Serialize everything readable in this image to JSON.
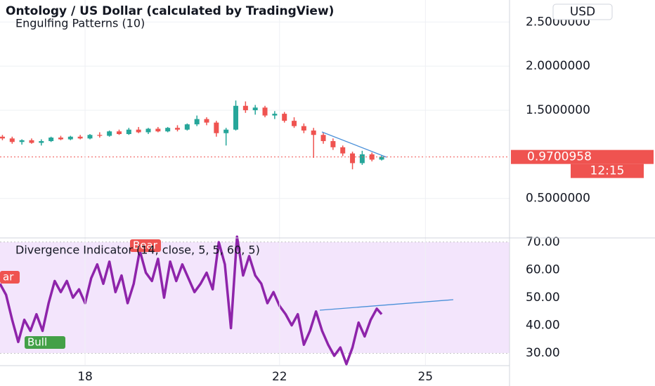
{
  "chart_data": [
    {
      "type": "candlestick",
      "title": "Ontology / US Dollar (calculated by TradingView)",
      "subtitle": "Engulfing Patterns (10)",
      "currency": "USD",
      "x": [
        16.3,
        16.5,
        16.7,
        16.9,
        17.1,
        17.3,
        17.5,
        17.7,
        17.9,
        18.1,
        18.3,
        18.5,
        18.7,
        18.9,
        19.1,
        19.3,
        19.5,
        19.7,
        19.9,
        20.1,
        20.3,
        20.5,
        20.7,
        20.9,
        21.1,
        21.3,
        21.5,
        21.7,
        21.9,
        22.1,
        22.3,
        22.5,
        22.7,
        22.9,
        23.1,
        23.3,
        23.5,
        23.7,
        23.9,
        24.1
      ],
      "open": [
        1.2,
        1.18,
        1.14,
        1.16,
        1.13,
        1.15,
        1.19,
        1.17,
        1.2,
        1.18,
        1.22,
        1.21,
        1.26,
        1.23,
        1.28,
        1.25,
        1.29,
        1.26,
        1.3,
        1.28,
        1.34,
        1.4,
        1.36,
        1.24,
        1.28,
        1.55,
        1.5,
        1.53,
        1.44,
        1.46,
        1.38,
        1.32,
        1.27,
        1.22,
        1.15,
        1.08,
        1.01,
        0.9,
        1.0,
        0.94
      ],
      "high": [
        1.22,
        1.2,
        1.17,
        1.18,
        1.17,
        1.2,
        1.21,
        1.21,
        1.22,
        1.23,
        1.25,
        1.27,
        1.28,
        1.3,
        1.31,
        1.3,
        1.31,
        1.31,
        1.33,
        1.35,
        1.44,
        1.42,
        1.38,
        1.3,
        1.61,
        1.6,
        1.56,
        1.55,
        1.49,
        1.48,
        1.42,
        1.35,
        1.3,
        1.25,
        1.18,
        1.1,
        1.03,
        1.04,
        1.02,
        0.99
      ],
      "low": [
        1.16,
        1.12,
        1.11,
        1.12,
        1.1,
        1.14,
        1.16,
        1.16,
        1.17,
        1.17,
        1.19,
        1.2,
        1.22,
        1.22,
        1.24,
        1.23,
        1.25,
        1.25,
        1.26,
        1.27,
        1.32,
        1.33,
        1.2,
        1.1,
        1.27,
        1.47,
        1.45,
        1.42,
        1.4,
        1.36,
        1.3,
        1.24,
        0.96,
        1.12,
        1.05,
        0.98,
        0.83,
        0.88,
        0.92,
        0.93
      ],
      "close": [
        1.18,
        1.14,
        1.16,
        1.13,
        1.15,
        1.19,
        1.17,
        1.2,
        1.18,
        1.22,
        1.21,
        1.26,
        1.23,
        1.28,
        1.25,
        1.29,
        1.26,
        1.3,
        1.28,
        1.34,
        1.4,
        1.36,
        1.24,
        1.28,
        1.55,
        1.5,
        1.53,
        1.44,
        1.46,
        1.38,
        1.32,
        1.27,
        1.22,
        1.15,
        1.08,
        1.01,
        0.9,
        1.0,
        0.94,
        0.97
      ],
      "up_color": "#26a69a",
      "down_color": "#ef5350",
      "last_price": 0.9700958,
      "countdown": "12:15",
      "xlim": [
        16.25,
        26.73
      ],
      "ylim": [
        0.06,
        2.75
      ],
      "yticks": [
        {
          "value": 0.5,
          "label": "0.5000000"
        },
        {
          "value": 1.5,
          "label": "1.5000000"
        },
        {
          "value": 2,
          "label": "2.0000000"
        },
        {
          "value": 2.5,
          "label": "2.5000000"
        }
      ],
      "grid": true
    },
    {
      "type": "line",
      "title": "Divergence Indicator (14, close, 5, 5, 60, 5)",
      "color": "#8e24aa",
      "band_color": "#f3e5fc",
      "x": [
        16.25,
        16.375,
        16.5,
        16.625,
        16.75,
        16.875,
        17,
        17.125,
        17.25,
        17.375,
        17.5,
        17.625,
        17.75,
        17.875,
        18,
        18.125,
        18.25,
        18.375,
        18.5,
        18.625,
        18.75,
        18.875,
        19,
        19.125,
        19.25,
        19.375,
        19.5,
        19.625,
        19.75,
        19.875,
        20,
        20.125,
        20.25,
        20.375,
        20.5,
        20.625,
        20.75,
        20.875,
        21,
        21.125,
        21.25,
        21.375,
        21.5,
        21.625,
        21.75,
        21.875,
        22,
        22.125,
        22.25,
        22.375,
        22.5,
        22.625,
        22.75,
        22.875,
        23,
        23.125,
        23.25,
        23.375,
        23.5,
        23.625,
        23.75,
        23.875,
        24,
        24.1
      ],
      "values": [
        55,
        51,
        42,
        34,
        42,
        38,
        44,
        38,
        48,
        56,
        52,
        56,
        50,
        53,
        48,
        57,
        62,
        55,
        63,
        52,
        58,
        48,
        55,
        67,
        59,
        56,
        64,
        50,
        63,
        56,
        62,
        57,
        52,
        55,
        59,
        53,
        70,
        62,
        39,
        72,
        58,
        65,
        58,
        55,
        48,
        52,
        47,
        44,
        40,
        44,
        33,
        38,
        45,
        38,
        33,
        29,
        32,
        26,
        32,
        41,
        36,
        42,
        46,
        44
      ],
      "annotations": [
        "Bear",
        "Bull",
        "ar"
      ],
      "xlim": [
        16.25,
        26.73
      ],
      "ylim": [
        25.7,
        71.3
      ],
      "yticks": [
        {
          "value": 30,
          "label": "30.00"
        },
        {
          "value": 40,
          "label": "40.00"
        },
        {
          "value": 50,
          "label": "50.00"
        },
        {
          "value": 60,
          "label": "60.00"
        },
        {
          "value": 70,
          "label": "70.00"
        }
      ],
      "xticks": [
        18,
        22,
        25
      ],
      "grid": true
    }
  ]
}
